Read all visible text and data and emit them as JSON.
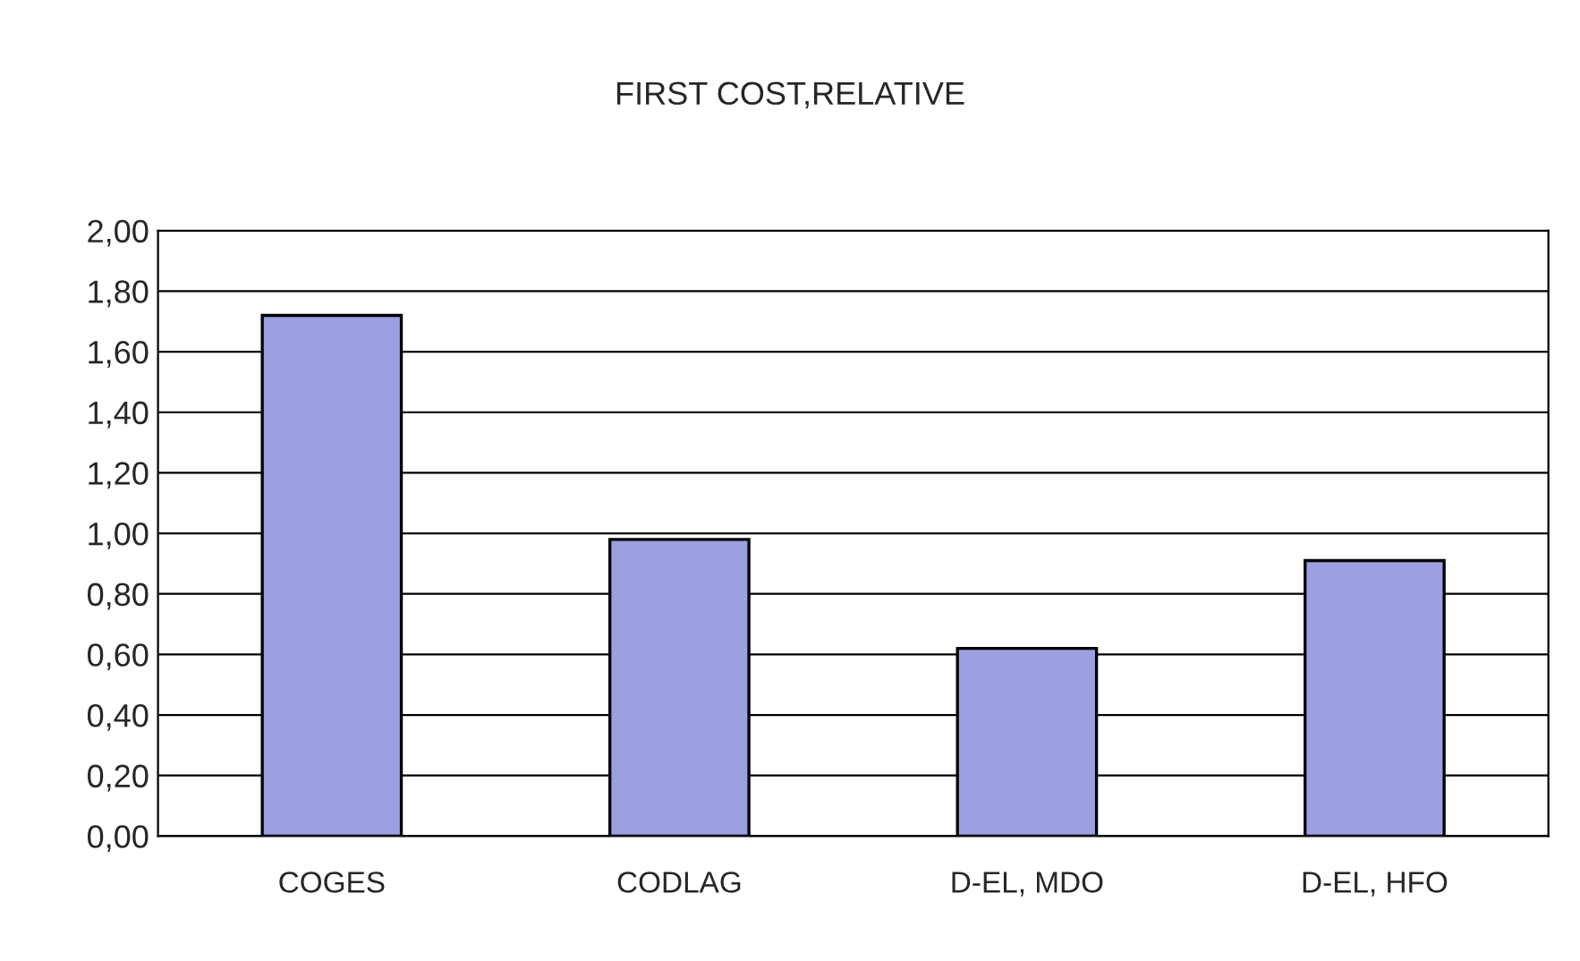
{
  "chart_data": {
    "type": "bar",
    "title": "FIRST COST,RELATIVE",
    "categories": [
      "COGES",
      "CODLAG",
      "D-EL, MDO",
      "D-EL, HFO"
    ],
    "values": [
      1.72,
      0.98,
      0.62,
      0.91
    ],
    "color": "#9c9fe0",
    "ylim": [
      0,
      2
    ],
    "yticks": [
      {
        "value": 0,
        "label": "0,00"
      },
      {
        "value": 0.2,
        "label": "0,20"
      },
      {
        "value": 0.4,
        "label": "0,40"
      },
      {
        "value": 0.6,
        "label": "0,60"
      },
      {
        "value": 0.8,
        "label": "0,80"
      },
      {
        "value": 1.0,
        "label": "1,00"
      },
      {
        "value": 1.2,
        "label": "1,20"
      },
      {
        "value": 1.4,
        "label": "1,40"
      },
      {
        "value": 1.6,
        "label": "1,60"
      },
      {
        "value": 1.8,
        "label": "1,80"
      },
      {
        "value": 2.0,
        "label": "2,00"
      }
    ],
    "grid": "y"
  }
}
